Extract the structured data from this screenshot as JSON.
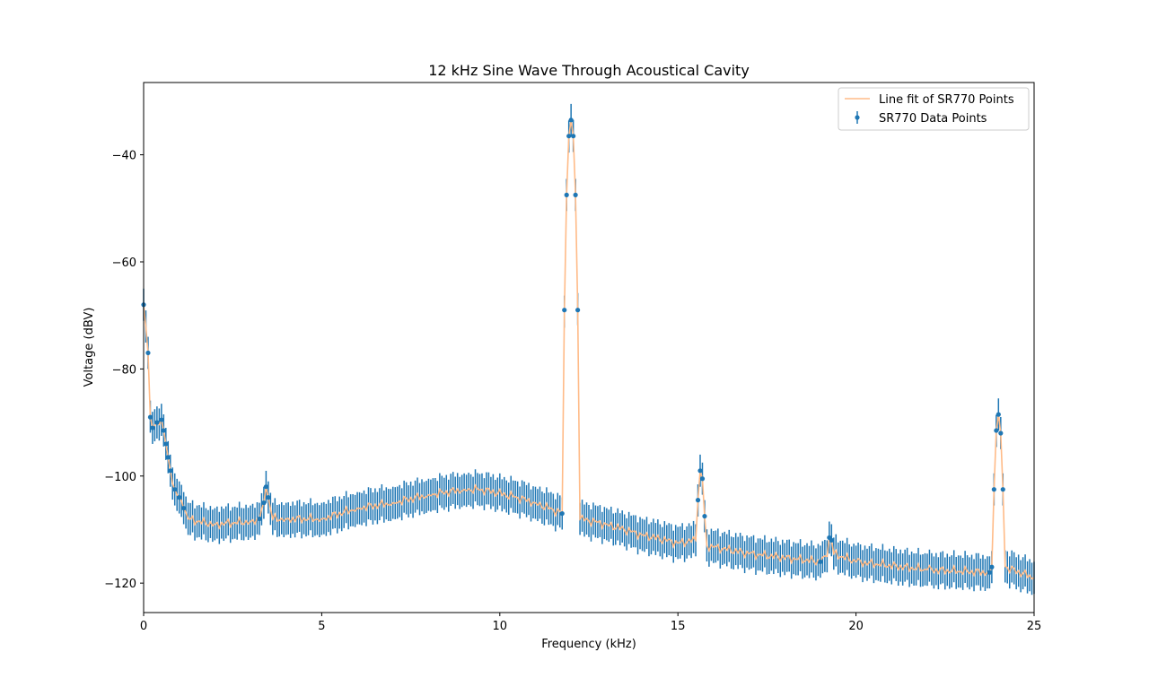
{
  "chart_data": {
    "type": "line",
    "title": "12 kHz Sine Wave Through Acoustical Cavity",
    "xlabel": "Frequency (kHz)",
    "ylabel": "Voltage (dBV)",
    "xlim": [
      0,
      25
    ],
    "ylim": [
      -125.5,
      -26.5
    ],
    "xticks": [
      0,
      5,
      10,
      15,
      20,
      25
    ],
    "xtick_labels": [
      "0",
      "5",
      "10",
      "15",
      "20",
      "25"
    ],
    "yticks": [
      -40,
      -60,
      -80,
      -100,
      -120
    ],
    "ytick_labels": [
      "−40",
      "−60",
      "−80",
      "−100",
      "−120"
    ],
    "grid": false,
    "legend_position": "upper right",
    "legend": [
      "Line fit of SR770 Points",
      "SR770 Data Points"
    ],
    "colors": {
      "fit_line": "#ffbb88",
      "data_points": "#1f77b4",
      "error_bars": "#1f77b4"
    },
    "series": [
      {
        "name": "SR770 Data Points",
        "kind": "points_with_error_bars",
        "bin_width_khz": 0.0625,
        "error_bar_halfwidth_dbv": 3,
        "anchors": [
          [
            0.0,
            -68.0
          ],
          [
            0.125,
            -77.0
          ],
          [
            0.188,
            -89.0
          ],
          [
            0.25,
            -91.0
          ],
          [
            0.375,
            -90.0
          ],
          [
            0.5,
            -89.5
          ],
          [
            0.563,
            -91.5
          ],
          [
            0.625,
            -94.0
          ],
          [
            0.688,
            -96.5
          ],
          [
            0.75,
            -99.0
          ],
          [
            0.875,
            -102.5
          ],
          [
            1.0,
            -104.0
          ],
          [
            1.125,
            -106.0
          ],
          [
            1.25,
            -108.0
          ],
          [
            1.5,
            -108.5
          ],
          [
            2.0,
            -109.0
          ],
          [
            3.0,
            -108.5
          ],
          [
            3.25,
            -108.0
          ],
          [
            3.375,
            -105.0
          ],
          [
            3.438,
            -102.0
          ],
          [
            3.5,
            -104.0
          ],
          [
            3.625,
            -108.0
          ],
          [
            4.0,
            -108.0
          ],
          [
            5.0,
            -108.0
          ],
          [
            6.0,
            -106.0
          ],
          [
            7.0,
            -105.0
          ],
          [
            8.0,
            -103.5
          ],
          [
            9.0,
            -102.5
          ],
          [
            9.5,
            -102.5
          ],
          [
            10.5,
            -104.0
          ],
          [
            11.0,
            -105.0
          ],
          [
            11.75,
            -107.0
          ],
          [
            11.813,
            -69.0
          ],
          [
            11.875,
            -47.5
          ],
          [
            11.938,
            -36.5
          ],
          [
            12.0,
            -33.5
          ],
          [
            12.063,
            -36.5
          ],
          [
            12.125,
            -47.5
          ],
          [
            12.188,
            -69.0
          ],
          [
            12.25,
            -108.0
          ],
          [
            13.0,
            -109.0
          ],
          [
            14.0,
            -111.0
          ],
          [
            15.0,
            -112.5
          ],
          [
            15.5,
            -112.0
          ],
          [
            15.563,
            -104.5
          ],
          [
            15.625,
            -99.0
          ],
          [
            15.688,
            -100.5
          ],
          [
            15.75,
            -107.5
          ],
          [
            15.813,
            -113.0
          ],
          [
            17.0,
            -114.5
          ],
          [
            19.0,
            -116.0
          ],
          [
            19.188,
            -115.0
          ],
          [
            19.25,
            -111.5
          ],
          [
            19.313,
            -112.0
          ],
          [
            19.375,
            -114.5
          ],
          [
            20.0,
            -116.0
          ],
          [
            22.0,
            -117.5
          ],
          [
            23.75,
            -118.0
          ],
          [
            23.813,
            -117.0
          ],
          [
            23.875,
            -102.5
          ],
          [
            23.938,
            -91.5
          ],
          [
            24.0,
            -88.5
          ],
          [
            24.063,
            -92.0
          ],
          [
            24.125,
            -102.5
          ],
          [
            24.188,
            -117.0
          ],
          [
            25.0,
            -119.0
          ]
        ]
      },
      {
        "name": "Line fit of SR770 Points",
        "kind": "line_through_points"
      }
    ]
  }
}
